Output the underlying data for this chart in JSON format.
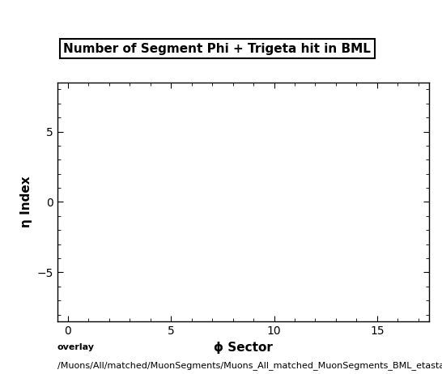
{
  "title": "Number of Segment Phi + Trigeta hit in BML",
  "xlabel": "ϕ Sector",
  "ylabel": "η Index",
  "xlim": [
    -0.5,
    17.5
  ],
  "ylim": [
    -8.5,
    8.5
  ],
  "xticks": [
    0,
    5,
    10,
    15
  ],
  "yticks": [
    -5,
    0,
    5
  ],
  "background_color": "#ffffff",
  "plot_bg_color": "#ffffff",
  "caption_line1": "overlay",
  "caption_line2": "/Muons/All/matched/MuonSegments/Muons_All_matched_MuonSegments_BML_etasta",
  "title_fontsize": 11,
  "label_fontsize": 11,
  "tick_fontsize": 10,
  "caption_fontsize": 8
}
